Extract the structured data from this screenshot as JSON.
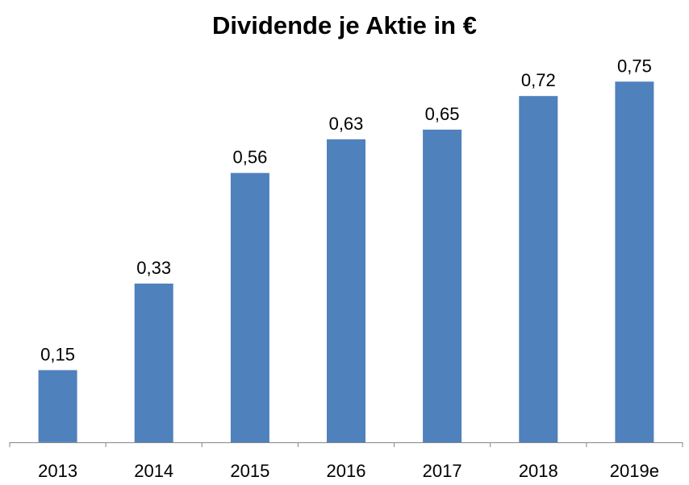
{
  "chart_data": {
    "type": "bar",
    "title": "Dividende je Aktie in €",
    "categories": [
      "2013",
      "2014",
      "2015",
      "2016",
      "2017",
      "2018",
      "2019e"
    ],
    "values": [
      0.15,
      0.33,
      0.56,
      0.63,
      0.65,
      0.72,
      0.75
    ],
    "value_labels": [
      "0,15",
      "0,33",
      "0,56",
      "0,63",
      "0,65",
      "0,72",
      "0,75"
    ],
    "xlabel": "",
    "ylabel": "",
    "ylim": [
      0,
      0.8
    ],
    "grid": false,
    "legend": "none",
    "colors": {
      "bar": "#4F81BD",
      "axis": "#868686"
    }
  }
}
